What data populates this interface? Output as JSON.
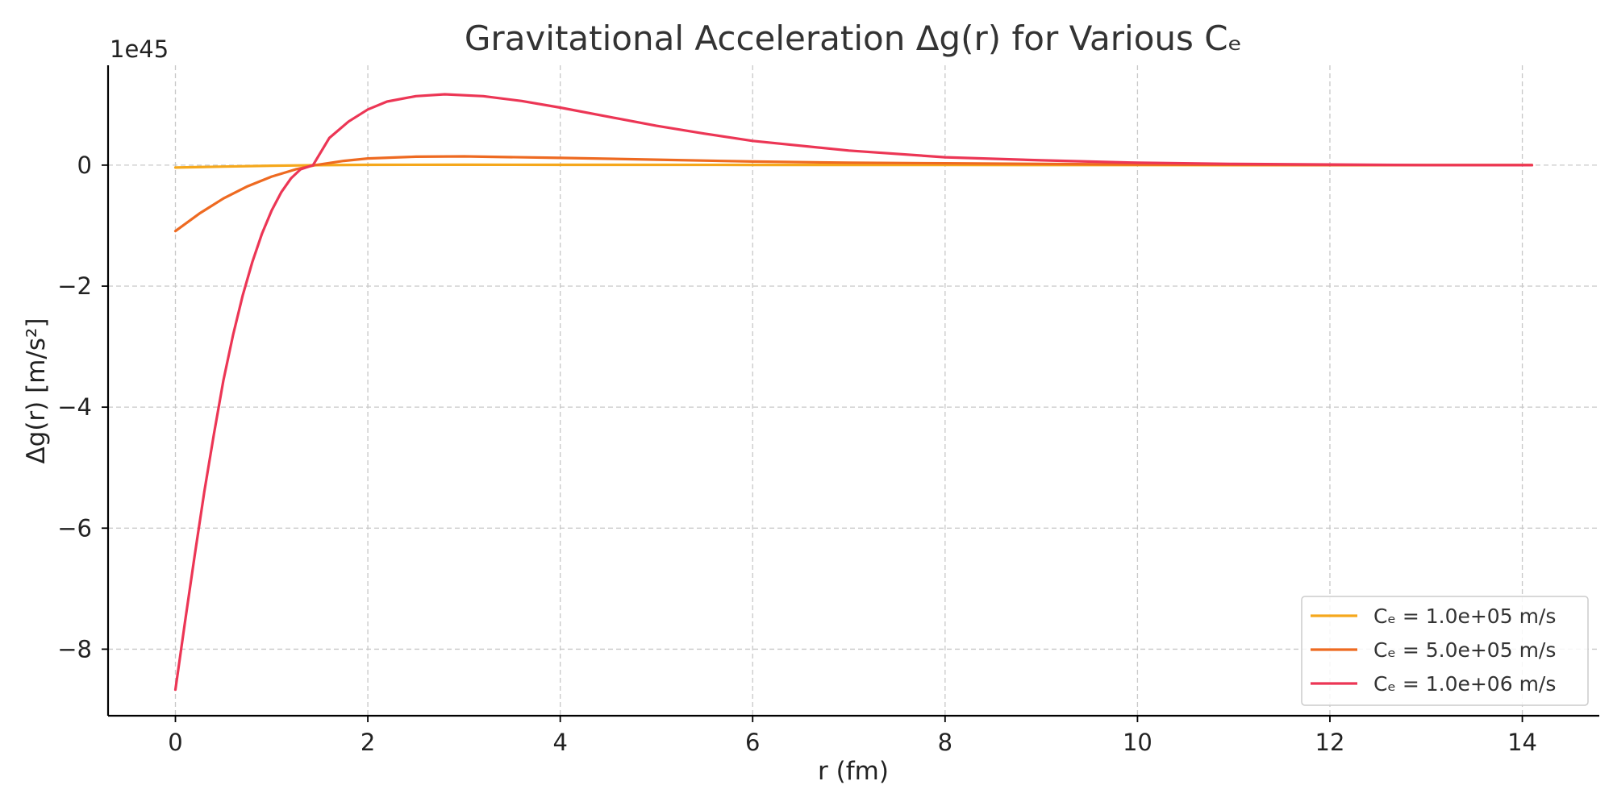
{
  "chart_data": {
    "type": "line",
    "title": "Gravitational Acceleration Δg(r) for Various Cₑ",
    "xlabel": "r (fm)",
    "ylabel": "Δg(r) [m/s²]",
    "y_offset_label": "1e45",
    "x_ticks": [
      0,
      2,
      4,
      6,
      8,
      10,
      12,
      14
    ],
    "x_tick_labels": [
      "0",
      "2",
      "4",
      "6",
      "8",
      "10",
      "12",
      "14"
    ],
    "y_ticks": [
      0,
      -2,
      -4,
      -6,
      -8
    ],
    "y_tick_labels": [
      "0",
      "−2",
      "−4",
      "−6",
      "−8"
    ],
    "xlim": [
      -0.7,
      14.8
    ],
    "ylim": [
      -9.1,
      1.65
    ],
    "grid": true,
    "legend_position": "lower-right",
    "series": [
      {
        "name": "Cₑ = 1.0e+05 m/s",
        "color": "#F5A81C",
        "x": [
          0,
          0.5,
          1.0,
          1.5,
          2.0,
          3.0,
          4.0,
          6.0,
          8.0,
          10.0,
          12.0,
          14.1
        ],
        "y": [
          -0.04,
          -0.025,
          -0.01,
          0.0,
          0.005,
          0.006,
          0.005,
          0.003,
          0.002,
          0.001,
          0.0,
          0.0
        ]
      },
      {
        "name": "Cₑ = 5.0e+05 m/s",
        "color": "#EE6A21",
        "x": [
          0,
          0.25,
          0.5,
          0.75,
          1.0,
          1.25,
          1.45,
          1.75,
          2.0,
          2.5,
          3.0,
          4.0,
          5.0,
          6.0,
          7.0,
          8.0,
          10.0,
          12.0,
          14.1
        ],
        "y": [
          -1.09,
          -0.8,
          -0.55,
          -0.35,
          -0.19,
          -0.07,
          0.0,
          0.07,
          0.11,
          0.14,
          0.145,
          0.12,
          0.09,
          0.06,
          0.04,
          0.03,
          0.01,
          0.0,
          0.0
        ]
      },
      {
        "name": "Cₑ = 1.0e+06 m/s",
        "color": "#EC3655",
        "x": [
          0,
          0.1,
          0.2,
          0.3,
          0.4,
          0.5,
          0.6,
          0.7,
          0.8,
          0.9,
          1.0,
          1.1,
          1.2,
          1.3,
          1.43,
          1.6,
          1.8,
          2.0,
          2.2,
          2.5,
          2.8,
          3.2,
          3.6,
          4.0,
          4.5,
          5.0,
          5.5,
          6.0,
          7.0,
          8.0,
          9.0,
          10.0,
          11.0,
          12.0,
          13.0,
          14.1
        ],
        "y": [
          -8.67,
          -7.55,
          -6.45,
          -5.4,
          -4.45,
          -3.55,
          -2.8,
          -2.15,
          -1.6,
          -1.13,
          -0.75,
          -0.45,
          -0.22,
          -0.07,
          0.0,
          0.45,
          0.72,
          0.92,
          1.05,
          1.14,
          1.17,
          1.14,
          1.06,
          0.95,
          0.8,
          0.65,
          0.52,
          0.4,
          0.24,
          0.13,
          0.08,
          0.04,
          0.02,
          0.01,
          0.0,
          0.0
        ]
      }
    ]
  }
}
